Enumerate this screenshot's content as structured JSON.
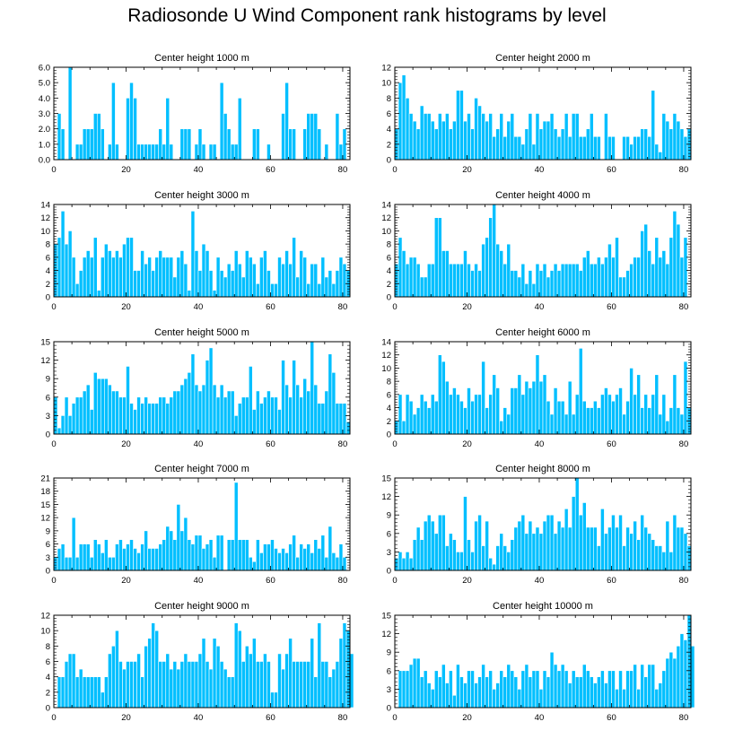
{
  "title": "Radiosonde U Wind Component rank histograms by level",
  "colors": {
    "bar": "#00BFFF",
    "axis": "#000000"
  },
  "chart_data": [
    {
      "type": "bar",
      "title": "Center height 1000 m",
      "x_start": 0,
      "xlim": [
        0,
        82
      ],
      "xticks": [
        0,
        20,
        40,
        60,
        80
      ],
      "ylim": [
        0,
        6
      ],
      "yticks": [
        "0.0",
        "1.0",
        "2.0",
        "3.0",
        "4.0",
        "5.0",
        "6.0"
      ],
      "ytick_values": [
        0,
        1,
        2,
        3,
        4,
        5,
        6
      ],
      "values": [
        0,
        3,
        2,
        0,
        6,
        0,
        1,
        1,
        2,
        2,
        2,
        3,
        3,
        2,
        0,
        1,
        5,
        1,
        0,
        0,
        4,
        5,
        4,
        1,
        1,
        1,
        1,
        1,
        1,
        2,
        1,
        4,
        1,
        0,
        0,
        2,
        2,
        2,
        0,
        1,
        2,
        1,
        0,
        1,
        1,
        0,
        5,
        3,
        2,
        1,
        1,
        4,
        0,
        0,
        0,
        2,
        2,
        0,
        0,
        1,
        0,
        0,
        0,
        3,
        5,
        2,
        2,
        0,
        0,
        2,
        3,
        3,
        3,
        2,
        0,
        1,
        0,
        0,
        3,
        1,
        2
      ]
    },
    {
      "type": "bar",
      "title": "Center height 2000 m",
      "x_start": 0,
      "xlim": [
        0,
        82
      ],
      "xticks": [
        0,
        20,
        40,
        60,
        80
      ],
      "ylim": [
        0,
        12
      ],
      "yticks": [
        "0",
        "2",
        "4",
        "6",
        "8",
        "10",
        "12"
      ],
      "ytick_values": [
        0,
        2,
        4,
        6,
        8,
        10,
        12
      ],
      "values": [
        4,
        10,
        11,
        8,
        6,
        5,
        4,
        7,
        6,
        6,
        5,
        4,
        6,
        5,
        6,
        4,
        5,
        9,
        9,
        5,
        6,
        4,
        8,
        7,
        6,
        5,
        6,
        3,
        4,
        6,
        3,
        5,
        6,
        3,
        3,
        2,
        4,
        6,
        2,
        6,
        4,
        5,
        5,
        6,
        4,
        3,
        4,
        6,
        3,
        6,
        6,
        3,
        3,
        4,
        6,
        3,
        3,
        0,
        6,
        3,
        3,
        0,
        0,
        3,
        3,
        2,
        3,
        3,
        4,
        4,
        3,
        9,
        2,
        1,
        6,
        5,
        4,
        6,
        5,
        4,
        3,
        4
      ]
    },
    {
      "type": "bar",
      "title": "Center height 3000 m",
      "x_start": 0,
      "xlim": [
        0,
        82
      ],
      "xticks": [
        0,
        20,
        40,
        60,
        80
      ],
      "ylim": [
        0,
        14
      ],
      "yticks": [
        "0",
        "2",
        "4",
        "6",
        "8",
        "10",
        "12",
        "14"
      ],
      "ytick_values": [
        0,
        2,
        4,
        6,
        8,
        10,
        12,
        14
      ],
      "values": [
        8,
        9,
        13,
        8,
        10,
        6,
        2,
        4,
        6,
        7,
        6,
        9,
        1,
        6,
        8,
        7,
        6,
        7,
        6,
        8,
        9,
        9,
        4,
        4,
        7,
        5,
        6,
        4,
        6,
        7,
        6,
        6,
        6,
        3,
        6,
        7,
        5,
        1,
        13,
        7,
        4,
        8,
        7,
        4,
        1,
        6,
        4,
        3,
        5,
        4,
        7,
        5,
        3,
        7,
        6,
        5,
        2,
        6,
        7,
        4,
        2,
        2,
        6,
        5,
        7,
        5,
        9,
        3,
        7,
        6,
        2,
        5,
        5,
        2,
        6,
        3,
        4,
        2,
        4,
        6,
        5,
        4
      ]
    },
    {
      "type": "bar",
      "title": "Center height 4000 m",
      "x_start": 0,
      "xlim": [
        0,
        82
      ],
      "xticks": [
        0,
        20,
        40,
        60,
        80
      ],
      "ylim": [
        0,
        14
      ],
      "yticks": [
        "0",
        "2",
        "4",
        "6",
        "8",
        "10",
        "12",
        "14"
      ],
      "ytick_values": [
        0,
        2,
        4,
        6,
        8,
        10,
        12,
        14
      ],
      "values": [
        5,
        9,
        7,
        5,
        6,
        6,
        5,
        3,
        3,
        5,
        5,
        12,
        12,
        7,
        7,
        5,
        5,
        5,
        5,
        7,
        5,
        4,
        5,
        4,
        8,
        9,
        12,
        14,
        8,
        7,
        5,
        8,
        4,
        4,
        3,
        5,
        2,
        4,
        2,
        5,
        4,
        5,
        3,
        4,
        5,
        4,
        5,
        5,
        5,
        5,
        5,
        4,
        6,
        7,
        5,
        5,
        6,
        5,
        6,
        8,
        6,
        9,
        3,
        3,
        4,
        5,
        6,
        6,
        10,
        11,
        7,
        5,
        9,
        6,
        7,
        5,
        9,
        13,
        11,
        6,
        9,
        0
      ]
    },
    {
      "type": "bar",
      "title": "Center height 5000 m",
      "x_start": 0,
      "xlim": [
        0,
        82
      ],
      "xticks": [
        0,
        20,
        40,
        60,
        80
      ],
      "ylim": [
        0,
        15
      ],
      "yticks": [
        "0",
        "3",
        "6",
        "9",
        "12",
        "15"
      ],
      "ytick_values": [
        0,
        3,
        6,
        9,
        12,
        15
      ],
      "values": [
        6,
        1,
        3,
        6,
        3,
        5,
        6,
        6,
        7,
        8,
        4,
        10,
        9,
        9,
        9,
        8,
        7,
        7,
        6,
        6,
        11,
        5,
        4,
        6,
        5,
        6,
        5,
        5,
        5,
        6,
        6,
        5,
        6,
        7,
        7,
        8,
        9,
        10,
        13,
        8,
        7,
        8,
        12,
        14,
        8,
        6,
        8,
        6,
        7,
        7,
        3,
        5,
        6,
        6,
        11,
        4,
        7,
        5,
        6,
        7,
        6,
        6,
        4,
        12,
        8,
        6,
        12,
        8,
        6,
        9,
        7,
        15,
        8,
        5,
        5,
        7,
        13,
        10,
        5,
        5,
        5,
        2
      ]
    },
    {
      "type": "bar",
      "title": "Center height 6000 m",
      "x_start": 0,
      "xlim": [
        0,
        82
      ],
      "xticks": [
        0,
        20,
        40,
        60,
        80
      ],
      "ylim": [
        0,
        14
      ],
      "yticks": [
        "0",
        "2",
        "4",
        "6",
        "8",
        "10",
        "12",
        "14"
      ],
      "ytick_values": [
        0,
        2,
        4,
        6,
        8,
        10,
        12,
        14
      ],
      "values": [
        2,
        6,
        2,
        6,
        5,
        3,
        4,
        6,
        5,
        4,
        6,
        5,
        12,
        11,
        8,
        6,
        7,
        6,
        5,
        4,
        7,
        5,
        6,
        6,
        11,
        4,
        6,
        9,
        7,
        2,
        4,
        3,
        7,
        7,
        9,
        6,
        8,
        7,
        8,
        12,
        8,
        9,
        5,
        3,
        7,
        5,
        5,
        3,
        8,
        3,
        6,
        13,
        5,
        4,
        4,
        5,
        4,
        6,
        7,
        6,
        5,
        6,
        7,
        3,
        5,
        10,
        6,
        9,
        4,
        6,
        4,
        6,
        9,
        3,
        6,
        2,
        4,
        9,
        4,
        3,
        11,
        4
      ]
    },
    {
      "type": "bar",
      "title": "Center height 7000 m",
      "x_start": 0,
      "xlim": [
        0,
        82
      ],
      "xticks": [
        0,
        20,
        40,
        60,
        80
      ],
      "ylim": [
        0,
        21
      ],
      "yticks": [
        "0",
        "3",
        "6",
        "9",
        "12",
        "15",
        "18",
        "21"
      ],
      "ytick_values": [
        0,
        3,
        6,
        9,
        12,
        15,
        18,
        21
      ],
      "values": [
        3,
        5,
        6,
        3,
        3,
        12,
        3,
        6,
        6,
        6,
        3,
        7,
        6,
        4,
        7,
        3,
        3,
        6,
        7,
        5,
        6,
        7,
        5,
        4,
        6,
        9,
        5,
        5,
        5,
        6,
        7,
        10,
        9,
        7,
        15,
        9,
        12,
        7,
        6,
        8,
        8,
        5,
        6,
        7,
        3,
        8,
        8,
        0,
        7,
        7,
        20,
        7,
        7,
        7,
        3,
        2,
        7,
        4,
        6,
        6,
        7,
        5,
        4,
        5,
        4,
        6,
        8,
        3,
        6,
        5,
        6,
        4,
        7,
        5,
        8,
        3,
        10,
        4,
        3,
        6,
        3,
        0
      ]
    },
    {
      "type": "bar",
      "title": "Center height 8000 m",
      "x_start": 0,
      "xlim": [
        0,
        82
      ],
      "xticks": [
        0,
        20,
        40,
        60,
        80
      ],
      "ylim": [
        0,
        15
      ],
      "yticks": [
        "0",
        "3",
        "6",
        "9",
        "12",
        "15"
      ],
      "ytick_values": [
        0,
        3,
        6,
        9,
        12,
        15
      ],
      "values": [
        2,
        3,
        2,
        3,
        2,
        5,
        7,
        5,
        8,
        9,
        8,
        6,
        9,
        9,
        4,
        6,
        5,
        3,
        3,
        12,
        5,
        3,
        8,
        9,
        4,
        8,
        2,
        1,
        4,
        6,
        4,
        3,
        5,
        7,
        8,
        9,
        6,
        8,
        6,
        7,
        6,
        8,
        9,
        9,
        6,
        8,
        7,
        10,
        7,
        12,
        15,
        9,
        11,
        7,
        7,
        7,
        4,
        10,
        6,
        7,
        9,
        7,
        9,
        4,
        7,
        6,
        8,
        5,
        9,
        7,
        6,
        5,
        4,
        4,
        3,
        8,
        3,
        9,
        7,
        7,
        6,
        4
      ]
    },
    {
      "type": "bar",
      "title": "Center height 9000 m",
      "x_start": 0,
      "xlim": [
        0,
        82
      ],
      "xticks": [
        0,
        20,
        40,
        60,
        80
      ],
      "ylim": [
        0,
        12
      ],
      "yticks": [
        "0",
        "2",
        "4",
        "6",
        "8",
        "10",
        "12"
      ],
      "ytick_values": [
        0,
        2,
        4,
        6,
        8,
        10,
        12
      ],
      "values": [
        0,
        4,
        4,
        6,
        7,
        7,
        4,
        5,
        4,
        4,
        4,
        4,
        4,
        2,
        4,
        7,
        8,
        10,
        6,
        5,
        6,
        6,
        6,
        7,
        4,
        8,
        9,
        11,
        10,
        6,
        6,
        7,
        5,
        6,
        5,
        6,
        7,
        6,
        6,
        6,
        7,
        9,
        6,
        5,
        9,
        8,
        6,
        5,
        4,
        4,
        11,
        10,
        6,
        8,
        7,
        9,
        6,
        6,
        7,
        6,
        2,
        2,
        7,
        5,
        7,
        9,
        6,
        6,
        6,
        6,
        6,
        9,
        4,
        11,
        6,
        6,
        4,
        5,
        6,
        9,
        11,
        10,
        7
      ]
    },
    {
      "type": "bar",
      "title": "Center height 10000 m",
      "x_start": 0,
      "xlim": [
        0,
        82
      ],
      "xticks": [
        0,
        20,
        40,
        60,
        80
      ],
      "ylim": [
        0,
        15
      ],
      "yticks": [
        "0",
        "3",
        "6",
        "9",
        "12",
        "15"
      ],
      "ytick_values": [
        0,
        3,
        6,
        9,
        12,
        15
      ],
      "values": [
        0,
        6,
        6,
        6,
        7,
        8,
        8,
        5,
        6,
        4,
        3,
        6,
        5,
        7,
        4,
        6,
        2,
        7,
        5,
        4,
        6,
        6,
        4,
        5,
        7,
        5,
        6,
        3,
        4,
        6,
        5,
        7,
        6,
        5,
        3,
        6,
        7,
        5,
        6,
        6,
        3,
        6,
        5,
        9,
        7,
        6,
        7,
        6,
        4,
        6,
        5,
        5,
        7,
        6,
        5,
        4,
        5,
        6,
        4,
        6,
        6,
        3,
        6,
        3,
        6,
        6,
        7,
        3,
        7,
        5,
        7,
        7,
        3,
        4,
        6,
        8,
        9,
        8,
        10,
        12,
        11,
        15,
        10
      ]
    }
  ]
}
